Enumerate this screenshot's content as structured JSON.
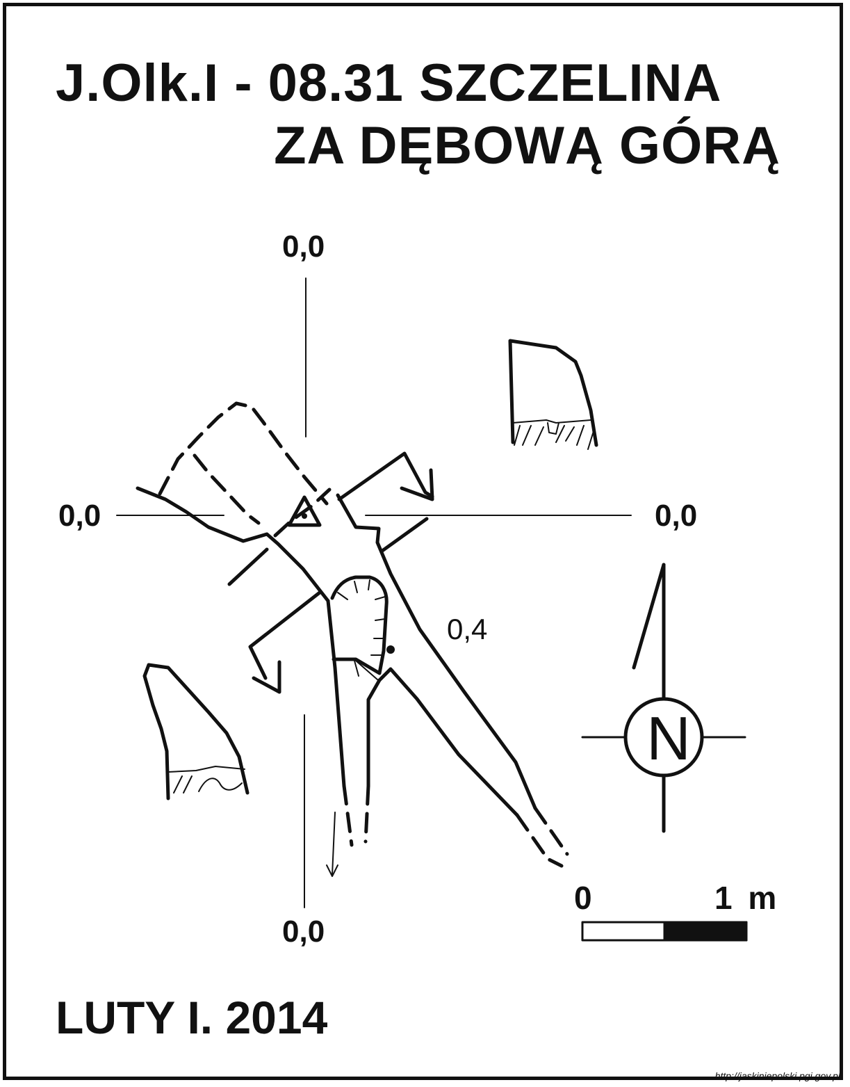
{
  "title": {
    "line1": "J.Olk.I - 08.31  SZCZELINA",
    "line2": "ZA DĘBOWĄ GÓRĄ"
  },
  "grid_labels": {
    "top": "0,0",
    "left": "0,0",
    "right": "0,0",
    "bottom": "0,0"
  },
  "depth_label": "0,4",
  "north": {
    "letter": "N",
    "icon": "north-arrow-icon"
  },
  "scale": {
    "start": "0",
    "end": "1 m"
  },
  "date": "LUTY I. 2014",
  "credit": "http://jaskiniepolski.pgi.gov.pl",
  "colors": {
    "ink": "#111111",
    "paper": "#ffffff"
  }
}
